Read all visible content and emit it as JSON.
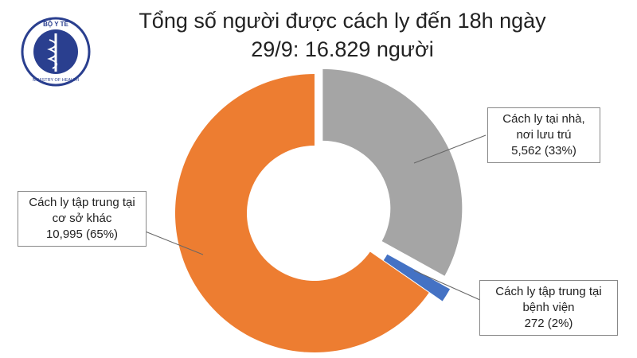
{
  "logo": {
    "top": "BỘ Y TẾ",
    "bottom": "MINISTRY OF HEALTH"
  },
  "chart_data": {
    "type": "donut",
    "title": "Tổng số người được cách ly đến 18h ngày 29/9: 16.829 người",
    "categories": [
      "Cách ly tại nhà, nơi lưu trú",
      "Cách ly tập trung tại bệnh viện",
      "Cách ly tập trung tại cơ sở khác"
    ],
    "values": [
      5562,
      272,
      10995
    ],
    "value_labels": [
      "5,562 (33%)",
      "272 (2%)",
      "10,995 (65%)"
    ],
    "colors": [
      "#a5a5a5",
      "#4472c4",
      "#ed7d31"
    ]
  }
}
